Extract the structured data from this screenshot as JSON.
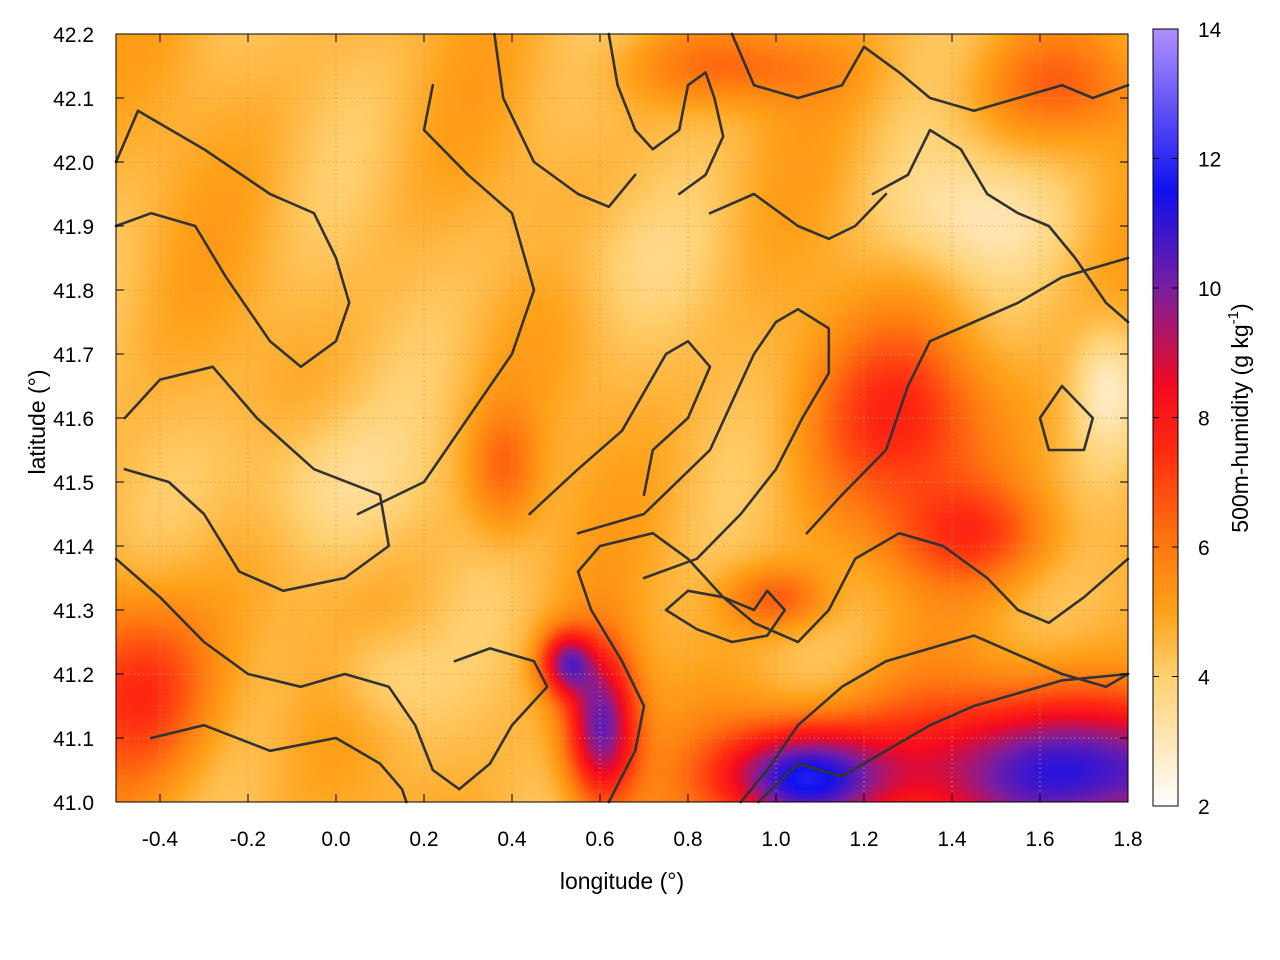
{
  "chart_data": {
    "type": "heatmap",
    "xlabel": "longitude (°)",
    "ylabel": "latitude (°)",
    "colorbar_label_base": "500m-humidity (g kg",
    "colorbar_label_exp": "-1",
    "colorbar_label_close": ")",
    "xlim": [
      -0.5,
      1.8
    ],
    "ylim": [
      41.0,
      42.2
    ],
    "clim": [
      2,
      14
    ],
    "x_ticks": [
      {
        "value": -0.4,
        "label": "-0.4"
      },
      {
        "value": -0.2,
        "label": "-0.2"
      },
      {
        "value": 0.0,
        "label": "0.0"
      },
      {
        "value": 0.2,
        "label": "0.2"
      },
      {
        "value": 0.4,
        "label": "0.4"
      },
      {
        "value": 0.6,
        "label": "0.6"
      },
      {
        "value": 0.8,
        "label": "0.8"
      },
      {
        "value": 1.0,
        "label": "1.0"
      },
      {
        "value": 1.2,
        "label": "1.2"
      },
      {
        "value": 1.4,
        "label": "1.4"
      },
      {
        "value": 1.6,
        "label": "1.6"
      },
      {
        "value": 1.8,
        "label": "1.8"
      }
    ],
    "y_ticks": [
      {
        "value": 41.0,
        "label": "41.0"
      },
      {
        "value": 41.1,
        "label": "41.1"
      },
      {
        "value": 41.2,
        "label": "41.2"
      },
      {
        "value": 41.3,
        "label": "41.3"
      },
      {
        "value": 41.4,
        "label": "41.4"
      },
      {
        "value": 41.5,
        "label": "41.5"
      },
      {
        "value": 41.6,
        "label": "41.6"
      },
      {
        "value": 41.7,
        "label": "41.7"
      },
      {
        "value": 41.8,
        "label": "41.8"
      },
      {
        "value": 41.9,
        "label": "41.9"
      },
      {
        "value": 42.0,
        "label": "42.0"
      },
      {
        "value": 42.1,
        "label": "42.1"
      },
      {
        "value": 42.2,
        "label": "42.2"
      }
    ],
    "colorbar_ticks": [
      {
        "value": 2,
        "label": "2"
      },
      {
        "value": 4,
        "label": "4"
      },
      {
        "value": 6,
        "label": "6"
      },
      {
        "value": 8,
        "label": "8"
      },
      {
        "value": 10,
        "label": "10"
      },
      {
        "value": 12,
        "label": "12"
      },
      {
        "value": 14,
        "label": "14"
      }
    ],
    "colormap": [
      {
        "value": 2,
        "color": "#ffffff"
      },
      {
        "value": 4,
        "color": "#ffd070"
      },
      {
        "value": 5,
        "color": "#ffa21a"
      },
      {
        "value": 6,
        "color": "#ff7a10"
      },
      {
        "value": 7.5,
        "color": "#ff2a10"
      },
      {
        "value": 8.5,
        "color": "#f20a20"
      },
      {
        "value": 10,
        "color": "#7a1ea0"
      },
      {
        "value": 11.5,
        "color": "#1010ee"
      },
      {
        "value": 14,
        "color": "#b090ff"
      }
    ],
    "grid": true,
    "base_value": 4.6,
    "field_blobs": [
      {
        "lon": 1.75,
        "lat": 41.05,
        "rx": 0.55,
        "ry": 0.12,
        "amp": 6.5
      },
      {
        "lon": 1.05,
        "lat": 41.04,
        "rx": 0.18,
        "ry": 0.08,
        "amp": 6.2
      },
      {
        "lon": 0.6,
        "lat": 41.12,
        "rx": 0.08,
        "ry": 0.12,
        "amp": 5.8
      },
      {
        "lon": 0.52,
        "lat": 41.22,
        "rx": 0.06,
        "ry": 0.05,
        "amp": 4.5
      },
      {
        "lon": 1.3,
        "lat": 41.6,
        "rx": 0.22,
        "ry": 0.15,
        "amp": 2.8
      },
      {
        "lon": 1.45,
        "lat": 41.42,
        "rx": 0.2,
        "ry": 0.08,
        "amp": 2.2
      },
      {
        "lon": 1.0,
        "lat": 41.32,
        "rx": 0.12,
        "ry": 0.05,
        "amp": 2.0
      },
      {
        "lon": -0.45,
        "lat": 41.18,
        "rx": 0.18,
        "ry": 0.15,
        "amp": 3.0
      },
      {
        "lon": 0.38,
        "lat": 41.52,
        "rx": 0.08,
        "ry": 0.1,
        "amp": 1.8
      },
      {
        "lon": 0.9,
        "lat": 42.15,
        "rx": 0.25,
        "ry": 0.06,
        "amp": 1.6
      },
      {
        "lon": 1.65,
        "lat": 42.12,
        "rx": 0.2,
        "ry": 0.08,
        "amp": 1.5
      },
      {
        "lon": -0.05,
        "lat": 41.5,
        "rx": 0.2,
        "ry": 0.12,
        "amp": -1.2
      },
      {
        "lon": 1.45,
        "lat": 41.92,
        "rx": 0.2,
        "ry": 0.1,
        "amp": -1.4
      },
      {
        "lon": 1.75,
        "lat": 41.65,
        "rx": 0.08,
        "ry": 0.1,
        "amp": -1.8
      },
      {
        "lon": 0.1,
        "lat": 41.2,
        "rx": 0.12,
        "ry": 0.08,
        "amp": -1.0
      },
      {
        "lon": 0.6,
        "lat": 41.85,
        "rx": 0.25,
        "ry": 0.1,
        "amp": -0.5
      }
    ],
    "contours": [
      [
        [
          -0.5,
          42.0
        ],
        [
          -0.45,
          42.08
        ],
        [
          -0.3,
          42.02
        ],
        [
          -0.15,
          41.95
        ],
        [
          -0.05,
          41.92
        ],
        [
          0.0,
          41.85
        ],
        [
          0.03,
          41.78
        ],
        [
          0.0,
          41.72
        ],
        [
          -0.08,
          41.68
        ],
        [
          -0.15,
          41.72
        ],
        [
          -0.25,
          41.82
        ],
        [
          -0.32,
          41.9
        ],
        [
          -0.42,
          41.92
        ],
        [
          -0.5,
          41.9
        ]
      ],
      [
        [
          0.05,
          41.45
        ],
        [
          0.2,
          41.5
        ],
        [
          0.3,
          41.6
        ],
        [
          0.4,
          41.7
        ],
        [
          0.45,
          41.8
        ],
        [
          0.4,
          41.92
        ],
        [
          0.3,
          41.98
        ],
        [
          0.2,
          42.05
        ],
        [
          0.22,
          42.12
        ]
      ],
      [
        [
          0.36,
          42.2
        ],
        [
          0.38,
          42.1
        ],
        [
          0.45,
          42.0
        ],
        [
          0.55,
          41.95
        ],
        [
          0.62,
          41.93
        ],
        [
          0.68,
          41.98
        ]
      ],
      [
        [
          0.44,
          41.45
        ],
        [
          0.55,
          41.52
        ],
        [
          0.65,
          41.58
        ],
        [
          0.75,
          41.7
        ],
        [
          0.8,
          41.72
        ],
        [
          0.85,
          41.68
        ],
        [
          0.8,
          41.6
        ],
        [
          0.72,
          41.55
        ],
        [
          0.7,
          41.48
        ]
      ],
      [
        [
          0.55,
          41.42
        ],
        [
          0.7,
          41.45
        ],
        [
          0.85,
          41.55
        ],
        [
          0.95,
          41.7
        ],
        [
          1.0,
          41.75
        ],
        [
          1.05,
          41.77
        ],
        [
          1.12,
          41.74
        ],
        [
          1.12,
          41.67
        ],
        [
          1.06,
          41.6
        ],
        [
          1.0,
          41.52
        ],
        [
          0.92,
          41.45
        ],
        [
          0.82,
          41.38
        ],
        [
          0.7,
          41.35
        ]
      ],
      [
        [
          -0.5,
          41.38
        ],
        [
          -0.4,
          41.32
        ],
        [
          -0.3,
          41.25
        ],
        [
          -0.2,
          41.2
        ],
        [
          -0.08,
          41.18
        ],
        [
          0.02,
          41.2
        ],
        [
          0.12,
          41.18
        ],
        [
          0.18,
          41.12
        ],
        [
          0.22,
          41.05
        ],
        [
          0.28,
          41.02
        ],
        [
          0.35,
          41.06
        ],
        [
          0.4,
          41.12
        ],
        [
          0.48,
          41.18
        ],
        [
          0.45,
          41.22
        ],
        [
          0.35,
          41.24
        ],
        [
          0.27,
          41.22
        ]
      ],
      [
        [
          -0.42,
          41.1
        ],
        [
          -0.3,
          41.12
        ],
        [
          -0.15,
          41.08
        ],
        [
          0.0,
          41.1
        ],
        [
          0.1,
          41.06
        ],
        [
          0.15,
          41.02
        ],
        [
          0.16,
          41.0
        ]
      ],
      [
        [
          -0.48,
          41.6
        ],
        [
          -0.4,
          41.66
        ],
        [
          -0.28,
          41.68
        ],
        [
          -0.18,
          41.6
        ],
        [
          -0.05,
          41.52
        ],
        [
          0.1,
          41.48
        ],
        [
          0.12,
          41.4
        ],
        [
          0.02,
          41.35
        ],
        [
          -0.12,
          41.33
        ],
        [
          -0.22,
          41.36
        ],
        [
          -0.3,
          41.45
        ],
        [
          -0.38,
          41.5
        ],
        [
          -0.48,
          41.52
        ]
      ],
      [
        [
          0.62,
          41.0
        ],
        [
          0.68,
          41.08
        ],
        [
          0.7,
          41.15
        ],
        [
          0.65,
          41.22
        ],
        [
          0.58,
          41.3
        ],
        [
          0.55,
          41.36
        ],
        [
          0.6,
          41.4
        ],
        [
          0.72,
          41.42
        ],
        [
          0.8,
          41.38
        ],
        [
          0.88,
          41.32
        ],
        [
          0.95,
          41.28
        ],
        [
          1.05,
          41.25
        ],
        [
          1.12,
          41.3
        ],
        [
          1.18,
          41.38
        ],
        [
          1.28,
          41.42
        ],
        [
          1.38,
          41.4
        ],
        [
          1.48,
          41.35
        ],
        [
          1.55,
          41.3
        ],
        [
          1.62,
          41.28
        ],
        [
          1.7,
          41.32
        ],
        [
          1.8,
          41.38
        ]
      ],
      [
        [
          0.92,
          41.0
        ],
        [
          0.98,
          41.05
        ],
        [
          1.05,
          41.12
        ],
        [
          1.15,
          41.18
        ],
        [
          1.25,
          41.22
        ],
        [
          1.35,
          41.24
        ],
        [
          1.45,
          41.26
        ],
        [
          1.55,
          41.23
        ],
        [
          1.65,
          41.2
        ],
        [
          1.75,
          41.18
        ],
        [
          1.8,
          41.2
        ]
      ],
      [
        [
          0.96,
          41.0
        ],
        [
          1.05,
          41.06
        ],
        [
          1.15,
          41.04
        ],
        [
          1.25,
          41.08
        ],
        [
          1.35,
          41.12
        ],
        [
          1.45,
          41.15
        ],
        [
          1.55,
          41.17
        ],
        [
          1.65,
          41.19
        ],
        [
          1.8,
          41.2
        ]
      ],
      [
        [
          1.07,
          41.42
        ],
        [
          1.15,
          41.48
        ],
        [
          1.25,
          41.55
        ],
        [
          1.3,
          41.65
        ],
        [
          1.35,
          41.72
        ],
        [
          1.45,
          41.75
        ],
        [
          1.55,
          41.78
        ],
        [
          1.65,
          41.82
        ],
        [
          1.75,
          41.84
        ],
        [
          1.8,
          41.85
        ]
      ],
      [
        [
          1.22,
          41.95
        ],
        [
          1.3,
          41.98
        ],
        [
          1.35,
          42.05
        ],
        [
          1.42,
          42.02
        ],
        [
          1.48,
          41.95
        ],
        [
          1.55,
          41.92
        ],
        [
          1.62,
          41.9
        ],
        [
          1.68,
          41.85
        ],
        [
          1.75,
          41.78
        ],
        [
          1.8,
          41.75
        ]
      ],
      [
        [
          0.85,
          41.92
        ],
        [
          0.95,
          41.95
        ],
        [
          1.05,
          41.9
        ],
        [
          1.12,
          41.88
        ],
        [
          1.18,
          41.9
        ],
        [
          1.25,
          41.95
        ]
      ],
      [
        [
          0.9,
          42.2
        ],
        [
          0.95,
          42.12
        ],
        [
          1.05,
          42.1
        ],
        [
          1.15,
          42.12
        ],
        [
          1.2,
          42.18
        ],
        [
          1.28,
          42.14
        ],
        [
          1.35,
          42.1
        ],
        [
          1.45,
          42.08
        ],
        [
          1.55,
          42.1
        ],
        [
          1.65,
          42.12
        ],
        [
          1.72,
          42.1
        ],
        [
          1.8,
          42.12
        ]
      ],
      [
        [
          0.62,
          42.2
        ],
        [
          0.64,
          42.12
        ],
        [
          0.68,
          42.05
        ],
        [
          0.72,
          42.02
        ],
        [
          0.78,
          42.05
        ],
        [
          0.8,
          42.12
        ],
        [
          0.84,
          42.14
        ],
        [
          0.86,
          42.1
        ],
        [
          0.88,
          42.04
        ],
        [
          0.84,
          41.98
        ],
        [
          0.78,
          41.95
        ]
      ],
      [
        [
          1.62,
          41.55
        ],
        [
          1.6,
          41.6
        ],
        [
          1.65,
          41.65
        ],
        [
          1.72,
          41.6
        ],
        [
          1.7,
          41.55
        ],
        [
          1.62,
          41.55
        ]
      ],
      [
        [
          0.75,
          41.3
        ],
        [
          0.8,
          41.33
        ],
        [
          0.88,
          41.32
        ],
        [
          0.95,
          41.3
        ],
        [
          0.98,
          41.33
        ],
        [
          1.02,
          41.3
        ],
        [
          0.98,
          41.26
        ],
        [
          0.9,
          41.25
        ],
        [
          0.82,
          41.27
        ],
        [
          0.75,
          41.3
        ]
      ]
    ]
  },
  "colors": {
    "grid": "#c8a050",
    "contour": "#333333",
    "frame": "#000000"
  }
}
